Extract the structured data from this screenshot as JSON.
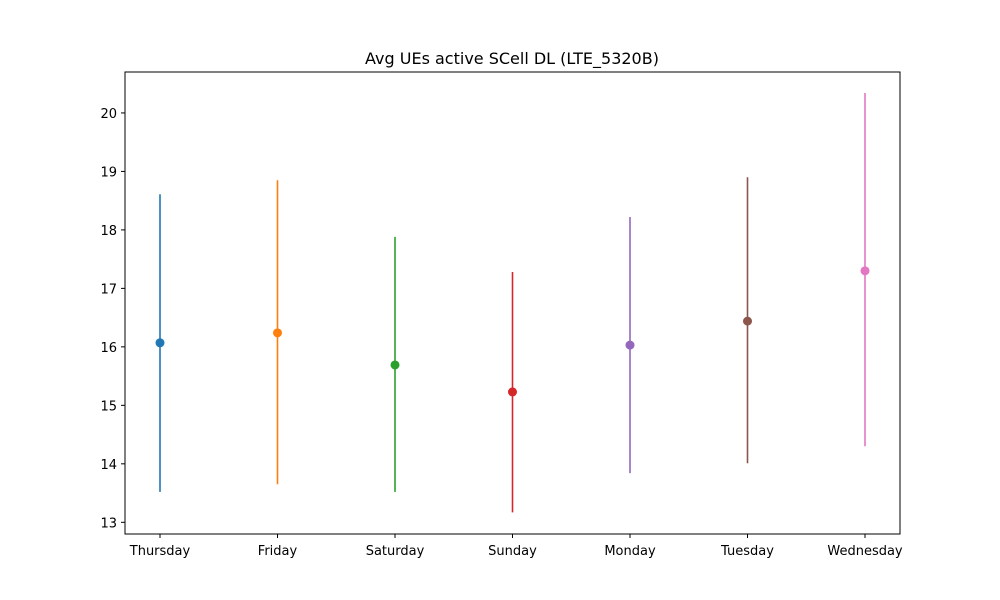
{
  "chart_data": {
    "type": "errorbar",
    "title": "Avg UEs active SCell DL (LTE_5320B)",
    "xlabel": "",
    "ylabel": "",
    "categories": [
      "Thursday",
      "Friday",
      "Saturday",
      "Sunday",
      "Monday",
      "Tuesday",
      "Wednesday"
    ],
    "means": [
      16.07,
      16.24,
      15.69,
      15.23,
      16.03,
      16.44,
      17.3
    ],
    "lower": [
      13.52,
      13.65,
      13.52,
      13.17,
      13.84,
      14.01,
      14.3
    ],
    "upper": [
      18.61,
      18.85,
      17.88,
      17.28,
      18.22,
      18.9,
      20.34
    ],
    "colors": [
      "#1f77b4",
      "#ff7f0e",
      "#2ca02c",
      "#d62728",
      "#9467bd",
      "#8c564b",
      "#e377c2"
    ],
    "yticks": [
      13,
      14,
      15,
      16,
      17,
      18,
      19,
      20
    ],
    "ylim": [
      12.8,
      20.7
    ],
    "grid": false,
    "legend": "none"
  }
}
